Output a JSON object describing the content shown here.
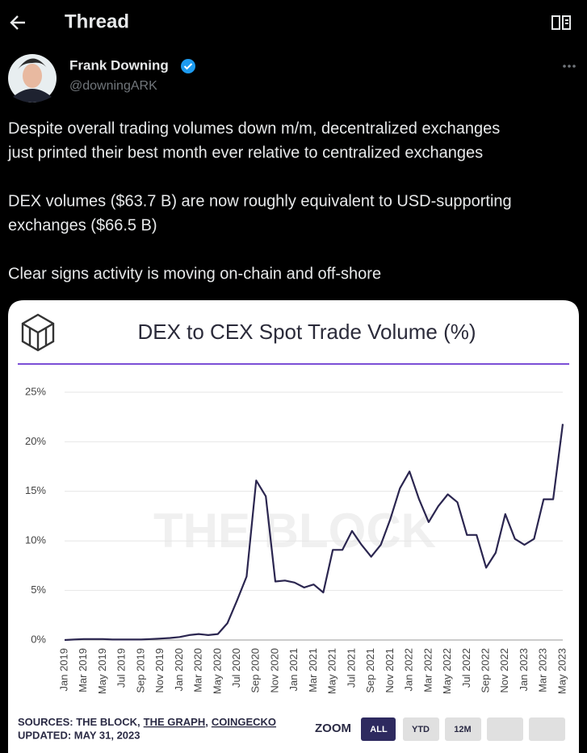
{
  "header": {
    "title": "Thread"
  },
  "tweet": {
    "name": "Frank Downing",
    "handle": "@downingARK",
    "lines": [
      "Despite overall trading volumes down m/m, decentralized exchanges",
      "just printed their best month ever relative to centralized exchanges",
      "DEX volumes ($63.7 B) are now roughly equivalent to USD-supporting",
      "exchanges ($66.5 B)",
      "Clear signs activity is moving on-chain and off-shore"
    ]
  },
  "chart_data": {
    "type": "line",
    "title": "DEX to CEX Spot Trade Volume (%)",
    "watermark": "THE BLOCK",
    "color": "#2b2650",
    "grid": true,
    "categories": [
      "Jan 2019",
      null,
      "Mar 2019",
      null,
      "May 2019",
      null,
      "Jul 2019",
      null,
      "Sep 2019",
      null,
      "Nov 2019",
      null,
      "Jan 2020",
      null,
      "Mar 2020",
      null,
      "May 2020",
      null,
      "Jul 2020",
      null,
      "Sep 2020",
      null,
      "Nov 2020",
      null,
      "Jan 2021",
      null,
      "Mar 2021",
      null,
      "May 2021",
      null,
      "Jul 2021",
      null,
      "Sep 2021",
      null,
      "Nov 2021",
      null,
      "Jan 2022",
      null,
      "Mar 2022",
      null,
      "May 2022",
      null,
      "Jul 2022",
      null,
      "Sep 2022",
      null,
      "Nov 2022",
      null,
      "Jan 2023",
      null,
      "Mar 2023",
      null,
      "May 2023"
    ],
    "values": [
      0,
      0.05,
      0.1,
      0.1,
      0.1,
      0.05,
      0.05,
      0.05,
      0.05,
      0.1,
      0.15,
      0.2,
      0.3,
      0.5,
      0.6,
      0.5,
      0.6,
      1.7,
      4.0,
      6.4,
      16.1,
      14.5,
      5.9,
      6.0,
      5.8,
      5.3,
      5.6,
      4.8,
      9.1,
      9.1,
      11.0,
      9.6,
      8.4,
      9.6,
      12.2,
      15.3,
      17.0,
      14.2,
      11.9,
      13.5,
      14.7,
      13.9,
      10.6,
      10.6,
      7.3,
      8.8,
      12.7,
      10.2,
      9.6,
      10.2,
      14.2,
      14.2,
      21.8
    ],
    "ylim": [
      0,
      25
    ],
    "yticks": [
      {
        "value": 0,
        "label": "0%"
      },
      {
        "value": 5,
        "label": "5%"
      },
      {
        "value": 10,
        "label": "10%"
      },
      {
        "value": 15,
        "label": "15%"
      },
      {
        "value": 20,
        "label": "20%"
      },
      {
        "value": 25,
        "label": "25%"
      }
    ],
    "sources": [
      "SOURCES: THE BLOCK,",
      "THE GRAPH",
      ",",
      "COINGECKO"
    ],
    "updated": "UPDATED: MAY 31, 2023",
    "zoom": {
      "label": "ZOOM",
      "buttons": [
        "ALL",
        "YTD",
        "12M"
      ]
    }
  }
}
